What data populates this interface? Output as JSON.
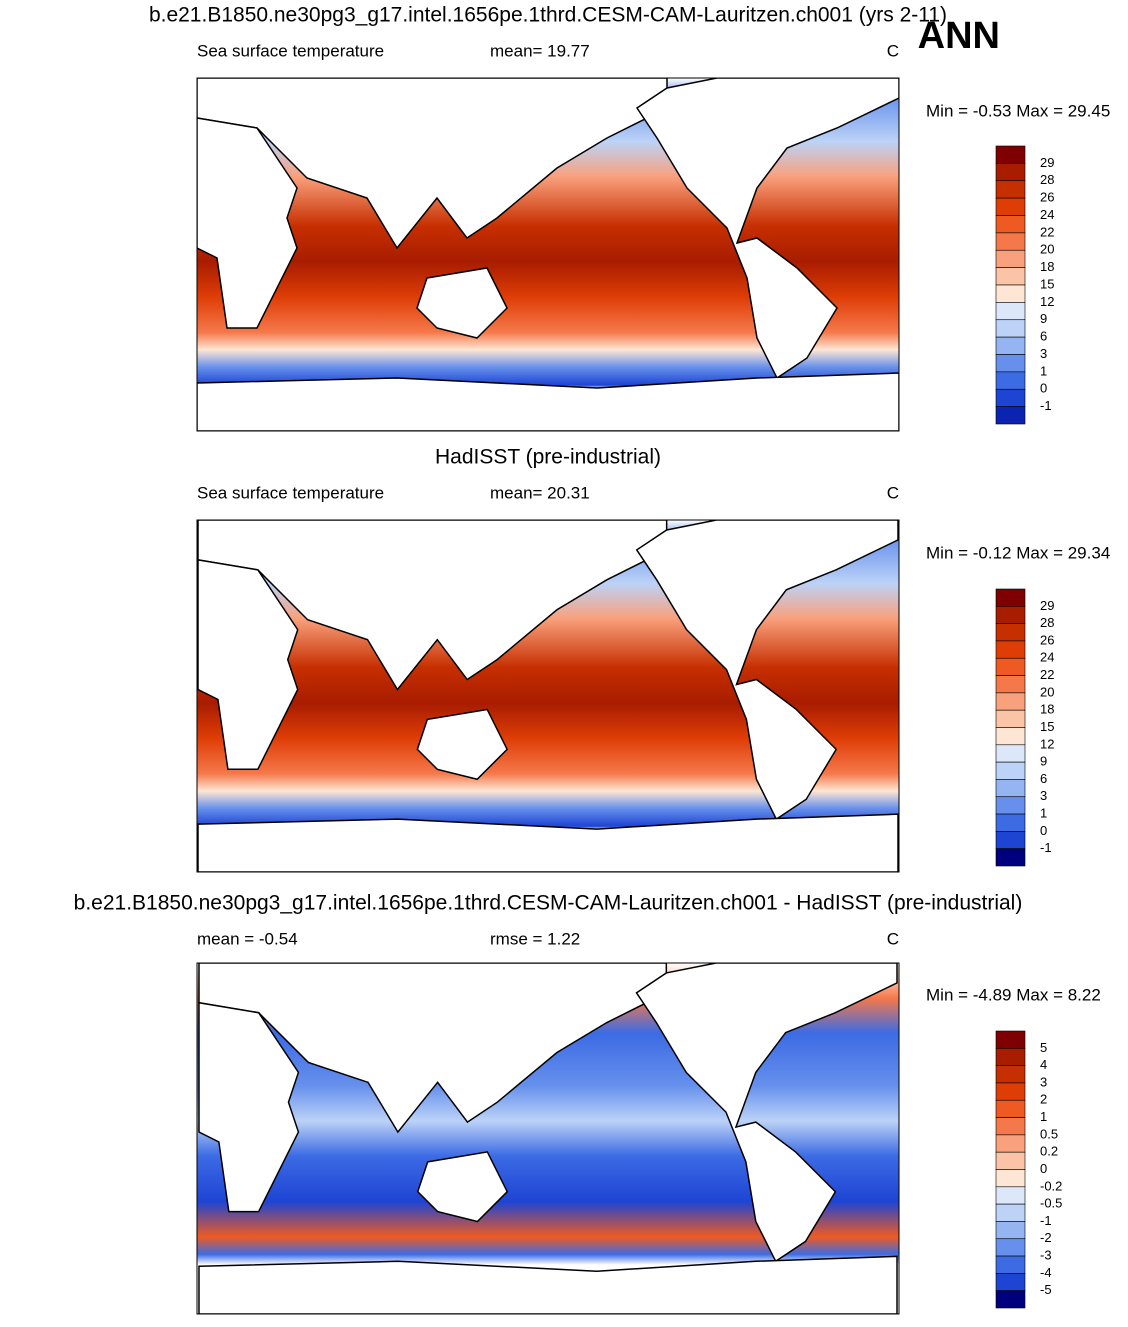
{
  "season": "ANN",
  "panels": [
    {
      "title": "b.e21.B1850.ne30pg3_g17.intel.1656pe.1thrd.CESM-CAM-Lauritzen.ch001 (yrs 2-11)",
      "left_label": "Sea surface temperature",
      "center_label": "mean=  19.77",
      "units": "C",
      "min_max": "Min =  -0.53 Max =  29.45",
      "colorbar": {
        "labels": [
          29,
          28,
          26,
          24,
          22,
          20,
          18,
          15,
          12,
          9,
          6,
          3,
          1,
          0,
          -1
        ],
        "colors": [
          "#7f0000",
          "#a81c00",
          "#c62f00",
          "#de3d06",
          "#ee5a22",
          "#f5784a",
          "#f9a07c",
          "#fcc4a6",
          "#fee6d4",
          "#dce8fa",
          "#bcd2f7",
          "#94b4f2",
          "#6690ec",
          "#3c6be4",
          "#1e44d4",
          "#0c22b0"
        ]
      }
    },
    {
      "title": "HadISST (pre-industrial)",
      "left_label": "Sea surface temperature",
      "center_label": "mean=  20.31",
      "units": "C",
      "min_max": "Min =  -0.12 Max =  29.34",
      "colorbar": {
        "labels": [
          29,
          28,
          26,
          24,
          22,
          20,
          18,
          15,
          12,
          9,
          6,
          3,
          1,
          0,
          -1
        ],
        "colors": [
          "#7f0000",
          "#a81c00",
          "#c62f00",
          "#de3d06",
          "#ee5a22",
          "#f5784a",
          "#f9a07c",
          "#fcc4a6",
          "#fee6d4",
          "#dce8fa",
          "#bcd2f7",
          "#94b4f2",
          "#6690ec",
          "#3c6be4",
          "#1e44d4",
          "#00007f"
        ]
      }
    },
    {
      "title": "b.e21.B1850.ne30pg3_g17.intel.1656pe.1thrd.CESM-CAM-Lauritzen.ch001 - HadISST (pre-industrial)",
      "left_label": "mean =  -0.54",
      "center_label": "rmse =   1.22",
      "units": "C",
      "min_max": "Min =  -4.89 Max =   8.22",
      "colorbar": {
        "labels": [
          5,
          4,
          3,
          2,
          1,
          0.5,
          0.2,
          0,
          -0.2,
          -0.5,
          -1,
          -2,
          -3,
          -4,
          -5
        ],
        "colors": [
          "#7f0000",
          "#a81c00",
          "#c62f00",
          "#de3d06",
          "#ee5a22",
          "#f5784a",
          "#f9a07c",
          "#fcc4a6",
          "#fee6d4",
          "#dce8fa",
          "#bcd2f7",
          "#94b4f2",
          "#6690ec",
          "#3c6be4",
          "#1e44d4",
          "#00007f"
        ]
      }
    }
  ]
}
